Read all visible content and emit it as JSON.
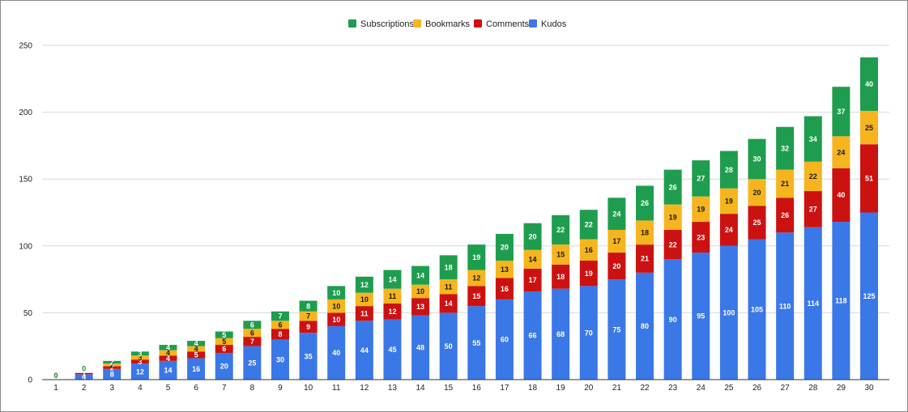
{
  "chart_data": {
    "type": "bar",
    "stacked": true,
    "title": "",
    "xlabel": "",
    "ylabel": "",
    "ylim": [
      0,
      250
    ],
    "yticks": [
      0,
      50,
      100,
      150,
      200,
      250
    ],
    "grid": true,
    "legend_position": "top-center",
    "categories": [
      "1",
      "2",
      "3",
      "4",
      "5",
      "6",
      "7",
      "8",
      "9",
      "10",
      "11",
      "12",
      "13",
      "14",
      "15",
      "16",
      "17",
      "18",
      "19",
      "20",
      "21",
      "22",
      "23",
      "24",
      "25",
      "26",
      "27",
      "28",
      "29",
      "30"
    ],
    "legend_order": [
      "Subscriptions",
      "Bookmarks",
      "Comments",
      "Kudos"
    ],
    "series": [
      {
        "name": "Kudos",
        "color": "#3b78e7",
        "values": [
          0,
          4,
          8,
          12,
          14,
          16,
          20,
          25,
          30,
          35,
          40,
          44,
          45,
          48,
          50,
          55,
          60,
          66,
          68,
          70,
          75,
          80,
          90,
          95,
          100,
          105,
          110,
          114,
          118,
          125
        ]
      },
      {
        "name": "Comments",
        "color": "#cc1111",
        "values": [
          0,
          1,
          2,
          3,
          4,
          5,
          6,
          7,
          8,
          9,
          10,
          11,
          12,
          13,
          14,
          15,
          16,
          17,
          18,
          19,
          20,
          21,
          22,
          23,
          24,
          25,
          26,
          27,
          40,
          51
        ]
      },
      {
        "name": "Bookmarks",
        "color": "#f6b51e",
        "values": [
          0,
          0,
          2,
          3,
          4,
          4,
          5,
          6,
          6,
          7,
          10,
          10,
          11,
          10,
          11,
          12,
          13,
          14,
          15,
          16,
          17,
          18,
          19,
          19,
          19,
          20,
          21,
          22,
          24,
          25
        ]
      },
      {
        "name": "Subscriptions",
        "color": "#1f9d4f",
        "values": [
          0,
          0,
          2,
          3,
          4,
          4,
          5,
          6,
          7,
          8,
          10,
          12,
          14,
          14,
          18,
          19,
          20,
          20,
          22,
          22,
          24,
          26,
          26,
          27,
          28,
          30,
          32,
          34,
          37,
          40
        ]
      }
    ]
  }
}
